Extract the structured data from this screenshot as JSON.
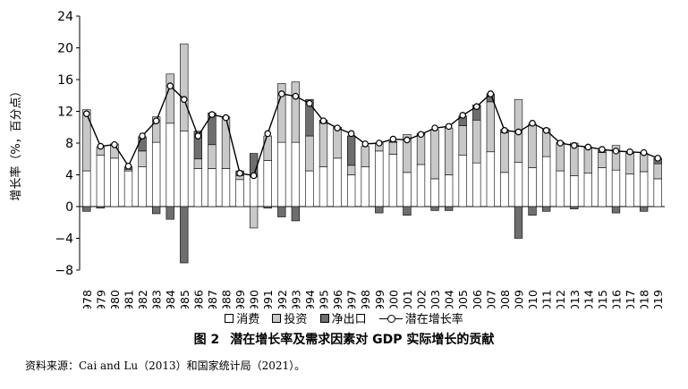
{
  "figure": {
    "number": "图 2",
    "title": "潜在增长率及需求因素对 GDP 实际增长的贡献",
    "source_note": "资料来源：Cai and Lu（2013）和国家统计局（2021）。"
  },
  "legend": {
    "consumption": "消费",
    "investment": "投资",
    "net_export": "净出口",
    "potential": "潜在增长率"
  },
  "colors": {
    "consumption": "#ffffff",
    "investment": "#c8c8c8",
    "net_export": "#6e6e6e",
    "line": "#000000"
  },
  "chart_data": {
    "type": "bar",
    "stacked": true,
    "ylabel": "增长率（%，百分点）",
    "ylim": [
      -8,
      24
    ],
    "yticks": [
      -8,
      -4,
      0,
      4,
      8,
      12,
      16,
      20,
      24
    ],
    "categories": [
      "1978",
      "1979",
      "1980",
      "1981",
      "1982",
      "1983",
      "1984",
      "1985",
      "1986",
      "1987",
      "1988",
      "1989",
      "1990",
      "1991",
      "1992",
      "1993",
      "1994",
      "1995",
      "1996",
      "1997",
      "1998",
      "1999",
      "2000",
      "2001",
      "2002",
      "2003",
      "2004",
      "2005",
      "2006",
      "2007",
      "2008",
      "2009",
      "2010",
      "2011",
      "2012",
      "2013",
      "2014",
      "2015",
      "2016",
      "2017",
      "2018",
      "2019"
    ],
    "series": [
      {
        "name": "消费",
        "values": [
          4.5,
          6.5,
          6.1,
          4.5,
          5.0,
          8.1,
          10.5,
          9.5,
          4.8,
          4.8,
          4.8,
          3.4,
          3.8,
          5.8,
          8.1,
          8.1,
          4.5,
          5.0,
          6.1,
          4.0,
          5.0,
          7.0,
          6.6,
          4.3,
          5.3,
          3.5,
          4.0,
          6.5,
          5.5,
          6.9,
          4.3,
          5.6,
          4.9,
          6.3,
          4.5,
          3.9,
          4.2,
          4.9,
          4.6,
          4.1,
          4.4,
          3.5
        ]
      },
      {
        "name": "投资",
        "values": [
          7.7,
          1.0,
          1.8,
          0.2,
          2.0,
          3.2,
          6.2,
          11.0,
          1.2,
          3.0,
          6.5,
          0.5,
          -2.7,
          3.1,
          7.4,
          7.6,
          4.4,
          5.5,
          3.8,
          1.2,
          2.6,
          1.0,
          1.5,
          4.8,
          3.8,
          6.2,
          5.9,
          3.7,
          5.4,
          6.3,
          5.0,
          7.9,
          5.5,
          3.5,
          3.5,
          4.1,
          3.2,
          1.9,
          3.1,
          2.6,
          2.3,
          1.9
        ]
      },
      {
        "name": "净出口",
        "values": [
          -0.6,
          -0.2,
          0.0,
          0.3,
          1.8,
          -0.9,
          -1.6,
          -7.1,
          3.5,
          4.0,
          0.0,
          0.6,
          2.9,
          -0.2,
          -1.3,
          -1.8,
          4.6,
          0.4,
          0.1,
          3.7,
          0.0,
          -0.8,
          0.1,
          -1.1,
          0.1,
          -0.5,
          -0.5,
          1.2,
          1.9,
          1.0,
          0.4,
          -4.0,
          -1.1,
          -0.6,
          0.1,
          -0.3,
          0.1,
          0.3,
          -0.8,
          0.2,
          -0.6,
          0.7
        ]
      }
    ],
    "line": {
      "name": "潜在增长率",
      "values": [
        11.7,
        7.6,
        7.8,
        5.1,
        8.9,
        10.8,
        15.2,
        13.5,
        8.9,
        11.6,
        11.2,
        4.2,
        3.9,
        9.2,
        14.2,
        13.9,
        13.0,
        10.8,
        9.9,
        9.2,
        7.9,
        8.0,
        8.5,
        8.4,
        9.1,
        9.9,
        10.1,
        11.5,
        12.6,
        14.2,
        9.6,
        9.4,
        10.5,
        9.6,
        8.0,
        7.7,
        7.5,
        7.2,
        7.0,
        6.9,
        6.8,
        6.1
      ]
    }
  }
}
